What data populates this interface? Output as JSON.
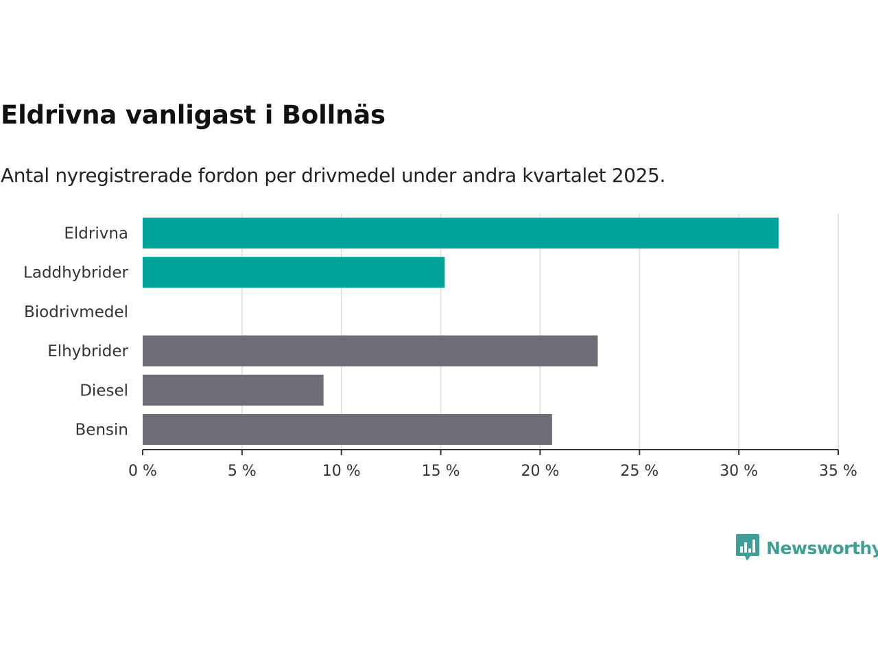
{
  "chart_data": {
    "type": "bar",
    "orientation": "horizontal",
    "title": "Eldrivna vanligast i Bollnäs",
    "subtitle": "Antal nyregistrerade fordon per drivmedel under andra kvartalet 2025.",
    "categories": [
      "Eldrivna",
      "Laddhybrider",
      "Biodrivmedel",
      "Elhybrider",
      "Diesel",
      "Bensin"
    ],
    "values": [
      32.0,
      15.2,
      0,
      22.9,
      9.1,
      20.6
    ],
    "bar_colors": [
      "#00a39a",
      "#00a39a",
      "#00a39a",
      "#6e6d75",
      "#6e6d75",
      "#6e6d75"
    ],
    "xlim": [
      0,
      35
    ],
    "xticks": [
      0,
      5,
      10,
      15,
      20,
      25,
      30,
      35
    ],
    "xtick_labels": [
      "0 %",
      "5 %",
      "10 %",
      "15 %",
      "20 %",
      "25 %",
      "30 %",
      "35 %"
    ],
    "unit": "%",
    "grid": "vertical"
  },
  "brand": {
    "name": "Newsworthy",
    "color": "#3f9f97",
    "icon": "bar-chart-speech-bubble-icon"
  }
}
